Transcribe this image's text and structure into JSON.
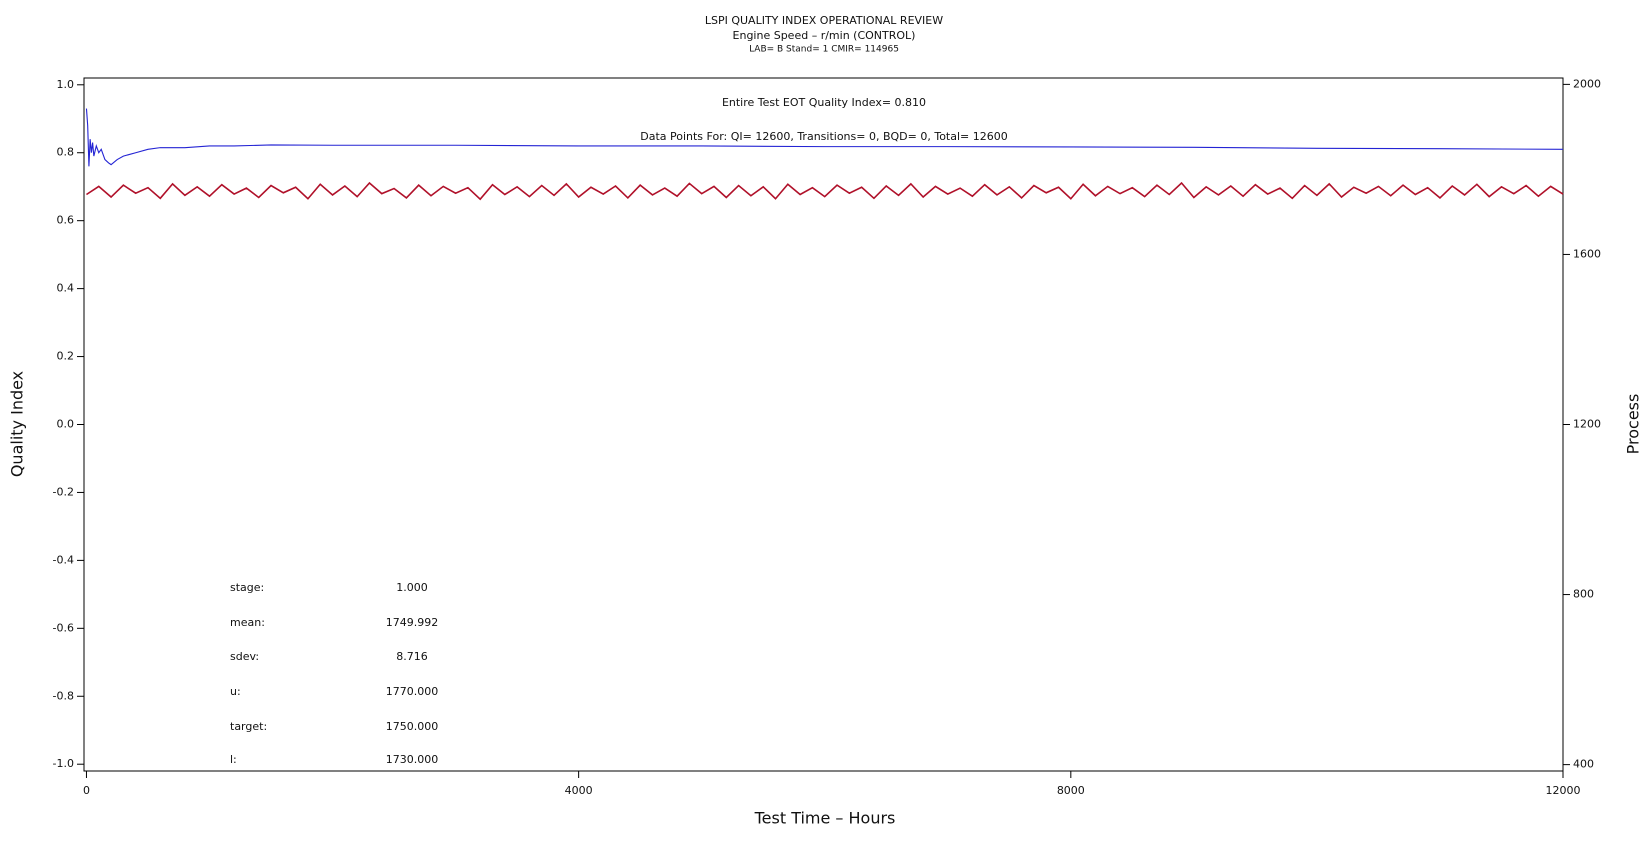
{
  "chart_data": {
    "type": "line",
    "title": "LSPI QUALITY INDEX OPERATIONAL REVIEW",
    "subtitle": "Engine Speed – r/min (CONTROL)",
    "subtitle2": "LAB= B Stand= 1 CMIR= 114965",
    "x_label": "Test Time – Hours",
    "y_label": "Quality Index",
    "y2_label": "Process",
    "annotations": [
      "Entire Test EOT Quality Index=   0.810",
      "Data Points For: QI= 12600, Transitions=     0, BQD=     0, Total= 12600"
    ],
    "stats": [
      {
        "label": "stage:",
        "value": "1.000"
      },
      {
        "label": "mean:",
        "value": "1749.992"
      },
      {
        "label": "sdev:",
        "value": "8.716"
      },
      {
        "label": "u:",
        "value": "1770.000"
      },
      {
        "label": "target:",
        "value": "1750.000"
      },
      {
        "label": "l:",
        "value": "1730.000"
      }
    ],
    "xlim": [
      -20,
      12000
    ],
    "xticks": [
      0,
      4000,
      8000,
      12000
    ],
    "ylim": [
      -1.02,
      1.02
    ],
    "yticks": [
      {
        "value": -1,
        "label": "-1.0"
      },
      -0.8,
      -0.6,
      -0.4,
      -0.2,
      {
        "value": 0,
        "label": "0.0"
      },
      0.2,
      0.4,
      0.6,
      0.8,
      {
        "value": 1,
        "label": "1.0"
      }
    ],
    "y2lim": [
      385,
      2015
    ],
    "y2ticks": [
      400,
      800,
      1200,
      1600,
      2000
    ],
    "series": [
      {
        "color": "#2424d4",
        "x": [
          0,
          10,
          20,
          30,
          40,
          50,
          60,
          80,
          100,
          120,
          150,
          180,
          200,
          250,
          300,
          400,
          500,
          600,
          800,
          1000,
          1200,
          1500,
          2000,
          3000,
          4000,
          5000,
          6000,
          7000,
          8000,
          9000,
          10000,
          11000,
          12000
        ],
        "values": [
          0.93,
          0.88,
          0.76,
          0.84,
          0.8,
          0.83,
          0.79,
          0.82,
          0.8,
          0.81,
          0.78,
          0.77,
          0.765,
          0.78,
          0.79,
          0.8,
          0.81,
          0.815,
          0.815,
          0.82,
          0.82,
          0.823,
          0.822,
          0.822,
          0.82,
          0.82,
          0.818,
          0.818,
          0.817,
          0.816,
          0.813,
          0.812,
          0.81
        ]
      },
      {
        "color": "#b0112a",
        "axis": "y2",
        "x": [
          0,
          100,
          200,
          300,
          400,
          500,
          600,
          700,
          800,
          900,
          1000,
          1100,
          1200,
          1300,
          1400,
          1500,
          1600,
          1700,
          1800,
          1900,
          2000,
          2100,
          2200,
          2300,
          2400,
          2500,
          2600,
          2700,
          2800,
          2900,
          3000,
          3100,
          3200,
          3300,
          3400,
          3500,
          3600,
          3700,
          3800,
          3900,
          4000,
          4100,
          4200,
          4300,
          4400,
          4500,
          4600,
          4700,
          4800,
          4900,
          5000,
          5100,
          5200,
          5300,
          5400,
          5500,
          5600,
          5700,
          5800,
          5900,
          6000,
          6100,
          6200,
          6300,
          6400,
          6500,
          6600,
          6700,
          6800,
          6900,
          7000,
          7100,
          7200,
          7300,
          7400,
          7500,
          7600,
          7700,
          7800,
          7900,
          8000,
          8100,
          8200,
          8300,
          8400,
          8500,
          8600,
          8700,
          8800,
          8900,
          9000,
          9100,
          9200,
          9300,
          9400,
          9500,
          9600,
          9700,
          9800,
          9900,
          10000,
          10100,
          10200,
          10300,
          10400,
          10500,
          10600,
          10700,
          10800,
          10900,
          11000,
          11100,
          11200,
          11300,
          11400,
          11500,
          11600,
          11700,
          11800,
          11900,
          12000
        ],
        "values": [
          1741,
          1760,
          1735,
          1763,
          1744,
          1757,
          1732,
          1766,
          1739,
          1759,
          1737,
          1764,
          1742,
          1756,
          1734,
          1762,
          1745,
          1758,
          1731,
          1765,
          1740,
          1761,
          1736,
          1768,
          1743,
          1755,
          1733,
          1763,
          1738,
          1760,
          1744,
          1757,
          1730,
          1764,
          1741,
          1759,
          1736,
          1762,
          1739,
          1766,
          1735,
          1758,
          1742,
          1761,
          1733,
          1763,
          1740,
          1756,
          1737,
          1767,
          1743,
          1760,
          1734,
          1762,
          1738,
          1759,
          1731,
          1765,
          1741,
          1757,
          1736,
          1763,
          1744,
          1758,
          1732,
          1761,
          1739,
          1766,
          1735,
          1760,
          1742,
          1756,
          1737,
          1764,
          1740,
          1759,
          1733,
          1762,
          1745,
          1758,
          1731,
          1765,
          1738,
          1760,
          1743,
          1757,
          1736,
          1763,
          1741,
          1768,
          1734,
          1759,
          1740,
          1761,
          1737,
          1764,
          1742,
          1756,
          1732,
          1762,
          1739,
          1766,
          1735,
          1758,
          1744,
          1760,
          1738,
          1763,
          1741,
          1757,
          1733,
          1761,
          1740,
          1765,
          1736,
          1759,
          1743,
          1762,
          1737,
          1760,
          1742
        ]
      }
    ]
  }
}
